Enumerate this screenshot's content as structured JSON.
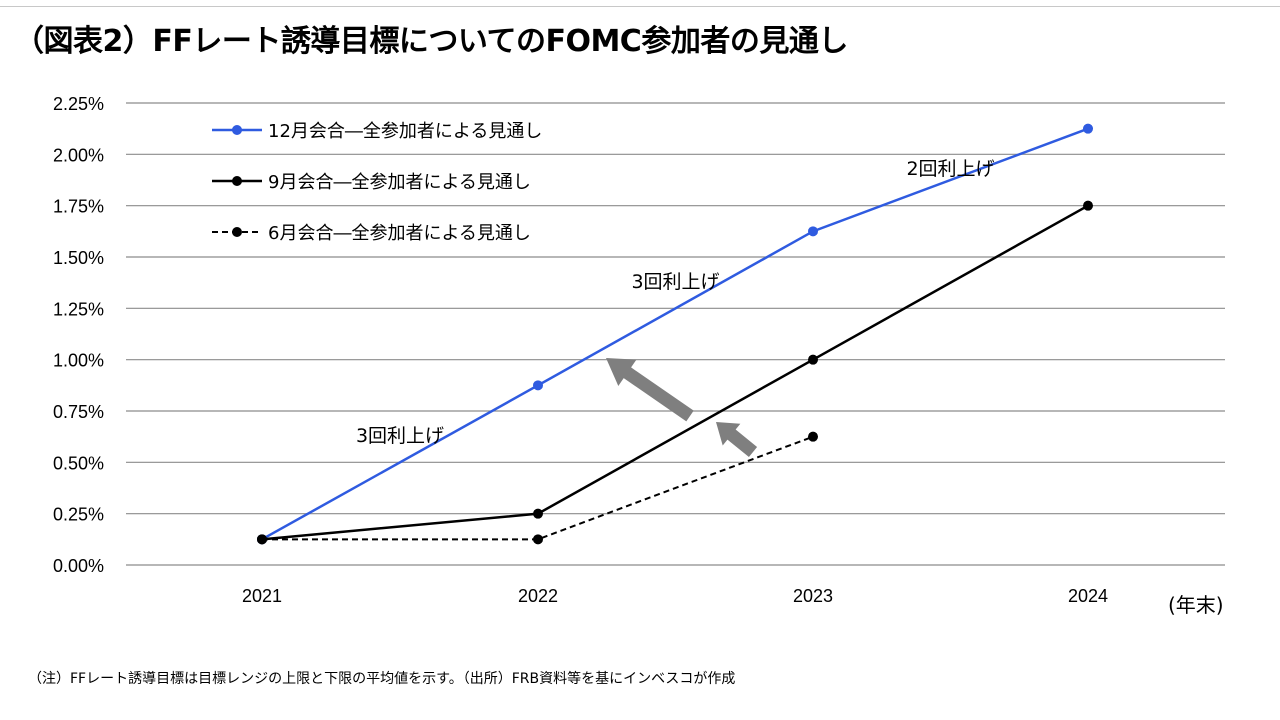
{
  "title": "（図表2）FFレート誘導目標についてのFOMC参加者の見通し",
  "note": "（注）FFレート誘導目標は目標レンジの上限と下限の平均値を示す。（出所）FRB資料等を基にインベスコが作成",
  "colors": {
    "blue": "#2f5be0",
    "black": "#000000",
    "grid": "#8c8c8c",
    "arrow": "#7f7f7f"
  },
  "chart_data": {
    "type": "line",
    "categories": [
      "2021",
      "2022",
      "2023",
      "2024"
    ],
    "x_unit_label": "(年末)",
    "ylim": [
      0,
      2.25
    ],
    "y_ticks": [
      "0.00%",
      "0.25%",
      "0.50%",
      "0.75%",
      "1.00%",
      "1.25%",
      "1.50%",
      "1.75%",
      "2.00%",
      "2.25%"
    ],
    "grid": true,
    "legend_position": "top-left",
    "series": [
      {
        "name": "12月会合―全参加者による見通し",
        "style": "solid",
        "color": "#2f5be0",
        "values": [
          0.125,
          0.875,
          1.625,
          2.125
        ]
      },
      {
        "name": "9月会合―全参加者による見通し",
        "style": "solid",
        "color": "#000000",
        "values": [
          0.125,
          0.25,
          1.0,
          1.75
        ]
      },
      {
        "name": "6月会合―全参加者による見通し",
        "style": "dashed",
        "color": "#000000",
        "values": [
          0.125,
          0.125,
          0.625,
          null
        ]
      }
    ],
    "annotations": [
      {
        "text": "3回利上げ",
        "x": "2021.5",
        "y": 0.6
      },
      {
        "text": "3回利上げ",
        "x": "2022.5",
        "y": 1.35
      },
      {
        "text": "2回利上げ",
        "x": "2023.5",
        "y": 1.9
      }
    ]
  }
}
